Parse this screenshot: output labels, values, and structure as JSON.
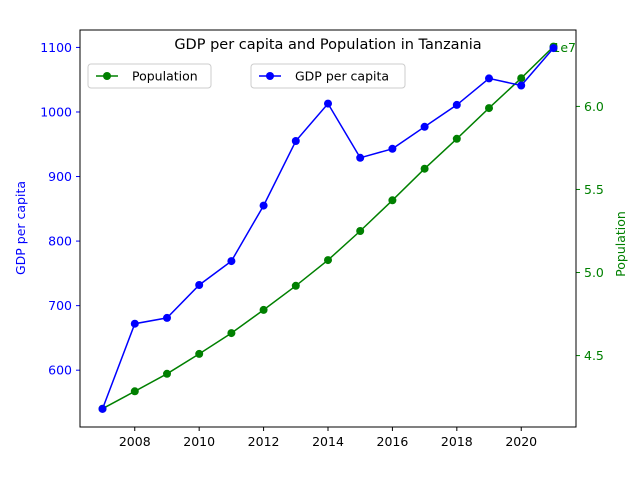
{
  "chart_data": {
    "type": "line",
    "title": "GDP per capita and Population in Tanzania",
    "x": [
      2007,
      2008,
      2009,
      2010,
      2011,
      2012,
      2013,
      2014,
      2015,
      2016,
      2017,
      2018,
      2019,
      2020,
      2021
    ],
    "x_ticks": [
      "2008",
      "2010",
      "2012",
      "2014",
      "2016",
      "2018",
      "2020"
    ],
    "xlim": [
      2006.3,
      2021.7
    ],
    "series": [
      {
        "name": "GDP per capita",
        "axis": "left",
        "color": "#0000ff",
        "values": [
          540,
          672,
          681,
          732,
          769,
          855,
          955,
          1013,
          929,
          943,
          977,
          1011,
          1052,
          1041,
          1099
        ]
      },
      {
        "name": "Population",
        "axis": "right",
        "color": "#008000",
        "values": [
          41800000,
          42850000,
          43900000,
          45100000,
          46350000,
          47750000,
          49200000,
          50750000,
          52500000,
          54350000,
          56250000,
          58050000,
          59900000,
          61700000,
          63600000
        ]
      }
    ],
    "left_axis": {
      "label": "GDP per capita",
      "color": "#0000ff",
      "ylim": [
        512,
        1127
      ],
      "ticks": [
        600,
        700,
        800,
        900,
        1000,
        1100
      ],
      "tick_labels": [
        "600",
        "700",
        "800",
        "900",
        "1000",
        "1100"
      ]
    },
    "right_axis": {
      "label": "Population",
      "color": "#008000",
      "ylim": [
        40700000,
        64600000
      ],
      "offset_text": "1e7",
      "ticks": [
        45000000,
        50000000,
        55000000,
        60000000
      ],
      "tick_labels": [
        "4.5",
        "5.0",
        "5.5",
        "6.0"
      ]
    },
    "legends": [
      {
        "position": "upper-left",
        "entries": [
          "Population"
        ]
      },
      {
        "position": "upper-center",
        "entries": [
          "GDP per capita"
        ]
      }
    ],
    "grid": false
  }
}
